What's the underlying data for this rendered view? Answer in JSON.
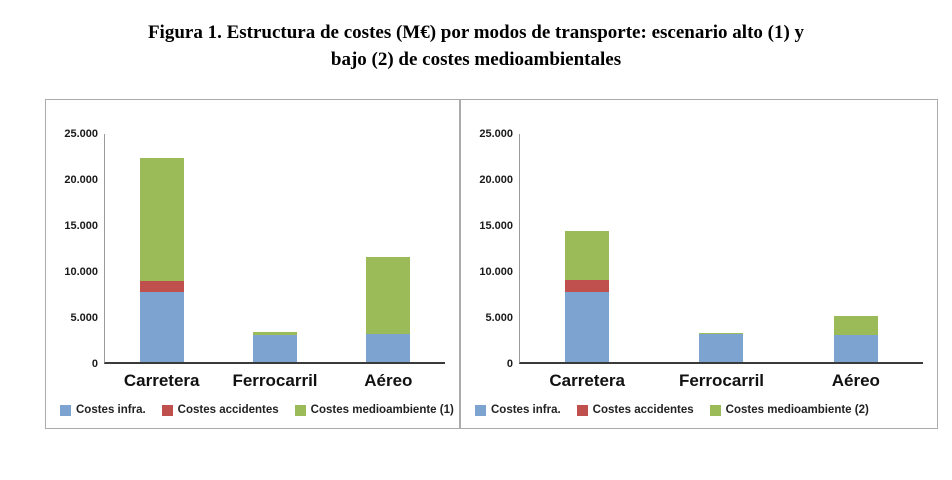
{
  "title": {
    "line1": "Figura 1. Estructura de costes (M€) por modos de transporte: escenario alto (1) y",
    "line2": "bajo (2) de costes medioambientales"
  },
  "chart_data": [
    {
      "type": "bar",
      "stacked": true,
      "title": "Escenario alto (1)",
      "categories": [
        "Carretera",
        "Ferrocarril",
        "Aéreo"
      ],
      "series": [
        {
          "name": "Costes infra.",
          "color": "#7da3d0",
          "values": [
            7700,
            3000,
            3100
          ]
        },
        {
          "name": "Costes accidentes",
          "color": "#c0504d",
          "values": [
            1200,
            0,
            0
          ]
        },
        {
          "name": "Costes medioambiente (1)",
          "color": "#9bbb59",
          "values": [
            13500,
            300,
            8400
          ]
        }
      ],
      "ylim": [
        0,
        25000
      ],
      "yticks": [
        0,
        5000,
        10000,
        15000,
        20000,
        25000
      ],
      "ytick_labels": [
        "0",
        "5.000",
        "10.000",
        "15.000",
        "20.000",
        "25.000"
      ],
      "legend_position": "bottom",
      "grid": false
    },
    {
      "type": "bar",
      "stacked": true,
      "title": "Escenario bajo (2)",
      "categories": [
        "Carretera",
        "Ferrocarril",
        "Aéreo"
      ],
      "series": [
        {
          "name": "Costes infra.",
          "color": "#7da3d0",
          "values": [
            7700,
            3050,
            3000
          ]
        },
        {
          "name": "Costes accidentes",
          "color": "#c0504d",
          "values": [
            1300,
            0,
            0
          ]
        },
        {
          "name": "Costes medioambiente (2)",
          "color": "#9bbb59",
          "values": [
            5400,
            150,
            2100
          ]
        }
      ],
      "ylim": [
        0,
        25000
      ],
      "yticks": [
        0,
        5000,
        10000,
        15000,
        20000,
        25000
      ],
      "ytick_labels": [
        "0",
        "5.000",
        "10.000",
        "15.000",
        "20.000",
        "25.000"
      ],
      "legend_position": "bottom",
      "grid": false
    }
  ]
}
